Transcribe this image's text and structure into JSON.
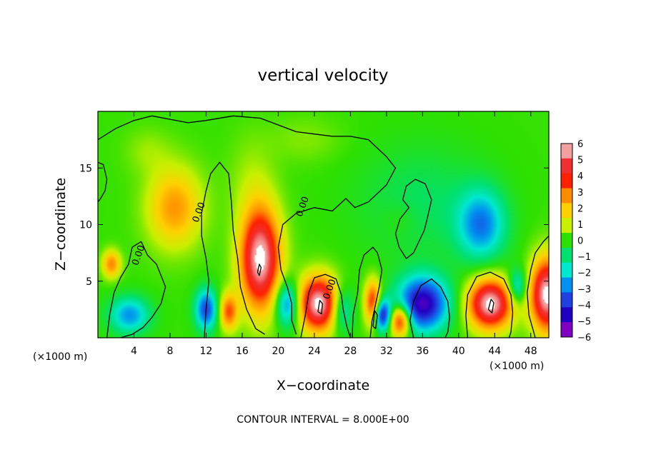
{
  "chart_data": {
    "type": "heatmap",
    "title": "vertical velocity",
    "xlabel": "X−coordinate",
    "ylabel": "Z−coordinate",
    "x_unit_left": "(×1000 m)",
    "x_unit_right": "(×1000 m)",
    "xlim": [
      0,
      50
    ],
    "ylim": [
      0,
      20
    ],
    "x_ticks": [
      4,
      8,
      12,
      16,
      20,
      24,
      28,
      32,
      36,
      40,
      44,
      48
    ],
    "x_tick_labels": [
      "4",
      "8",
      "12",
      "16",
      "20",
      "24",
      "28",
      "32",
      "36",
      "40",
      "44",
      "48"
    ],
    "y_ticks": [
      5,
      10,
      15
    ],
    "y_tick_labels": [
      "5",
      "10",
      "15"
    ],
    "contour_labels": [
      {
        "text": "0.00",
        "x": 11.5,
        "y": 11.0
      },
      {
        "text": "0.00",
        "x": 4.8,
        "y": 7.2
      },
      {
        "text": "0.00",
        "x": 23.0,
        "y": 11.5
      },
      {
        "text": "0.00",
        "x": 26.0,
        "y": 4.2
      }
    ],
    "colorbar": {
      "levels": [
        6,
        5,
        4,
        3,
        2,
        1,
        0,
        -1,
        -2,
        -3,
        -4,
        -5,
        -6
      ],
      "labels": [
        "6",
        "5",
        "4",
        "3",
        "2",
        "1",
        "0",
        "−1",
        "−2",
        "−3",
        "−4",
        "−5",
        "−6"
      ],
      "colors": [
        "#f4a0a0",
        "#f03030",
        "#ff2000",
        "#ff8c00",
        "#ffd000",
        "#c8f000",
        "#2ee000",
        "#00e070",
        "#00e8d0",
        "#0090f0",
        "#2040e0",
        "#2000c0",
        "#8000c0"
      ]
    },
    "features": [
      {
        "kind": "max",
        "x": 8.5,
        "y": 11.5,
        "r": [
          3.0,
          3.5
        ],
        "value": 2.8
      },
      {
        "kind": "max",
        "x": 18.0,
        "y": 7.0,
        "r": [
          2.2,
          4.5
        ],
        "value": 6.5
      },
      {
        "kind": "max",
        "x": 24.5,
        "y": 3.0,
        "r": [
          2.2,
          2.4
        ],
        "value": 6.5
      },
      {
        "kind": "max",
        "x": 43.5,
        "y": 3.0,
        "r": [
          2.4,
          2.2
        ],
        "value": 6.5
      },
      {
        "kind": "max",
        "x": 49.8,
        "y": 3.8,
        "r": [
          1.8,
          3.2
        ],
        "value": 6.5
      },
      {
        "kind": "max",
        "x": 14.5,
        "y": 2.3,
        "r": [
          1.0,
          1.6
        ],
        "value": 3.5
      },
      {
        "kind": "max",
        "x": 33.5,
        "y": 1.5,
        "r": [
          1.2,
          1.4
        ],
        "value": 5.0
      },
      {
        "kind": "max",
        "x": 1.5,
        "y": 6.5,
        "r": [
          1.0,
          1.2
        ],
        "value": 3.0
      },
      {
        "kind": "max",
        "x": 30.5,
        "y": 3.0,
        "r": [
          0.9,
          2.0
        ],
        "value": 4.5
      },
      {
        "kind": "min",
        "x": 3.5,
        "y": 2.0,
        "r": [
          2.2,
          1.6
        ],
        "value": -3.0
      },
      {
        "kind": "min",
        "x": 12.0,
        "y": 2.5,
        "r": [
          1.2,
          1.8
        ],
        "value": -4.0
      },
      {
        "kind": "min",
        "x": 21.0,
        "y": 3.0,
        "r": [
          1.3,
          2.0
        ],
        "value": -3.5
      },
      {
        "kind": "min",
        "x": 36.0,
        "y": 3.0,
        "r": [
          2.8,
          2.4
        ],
        "value": -5.5
      },
      {
        "kind": "min",
        "x": 31.5,
        "y": 2.0,
        "r": [
          1.0,
          1.4
        ],
        "value": -5.0
      },
      {
        "kind": "min",
        "x": 42.5,
        "y": 10.0,
        "r": [
          2.6,
          3.0
        ],
        "value": -3.2
      },
      {
        "kind": "min",
        "x": 46.5,
        "y": 4.5,
        "r": [
          1.0,
          1.5
        ],
        "value": -2.5
      },
      {
        "kind": "min",
        "x": 27.0,
        "y": 2.5,
        "r": [
          1.3,
          2.0
        ],
        "value": -2.5
      },
      {
        "kind": "max",
        "x": 5.5,
        "y": 16.5,
        "r": [
          2.5,
          2.0
        ],
        "value": 0.6
      },
      {
        "kind": "max",
        "x": 17.0,
        "y": 14.0,
        "r": [
          2.5,
          4.0
        ],
        "value": 0.6
      },
      {
        "kind": "max",
        "x": 23.0,
        "y": 17.5,
        "r": [
          4.0,
          2.0
        ],
        "value": 0.5
      },
      {
        "kind": "min",
        "x": 36.0,
        "y": 12.0,
        "r": [
          7.0,
          5.0
        ],
        "value": -0.9
      },
      {
        "kind": "max",
        "x": 33.5,
        "y": 10.5,
        "r": [
          2.0,
          1.5
        ],
        "value": 0.4
      }
    ],
    "contours_level_0": [
      [
        [
          0,
          17.5
        ],
        [
          2,
          18.5
        ],
        [
          4,
          19.2
        ],
        [
          6,
          19.6
        ],
        [
          8,
          19.3
        ],
        [
          10,
          19.0
        ],
        [
          12,
          19.2
        ],
        [
          15,
          19.6
        ],
        [
          18,
          19.4
        ],
        [
          20,
          18.8
        ],
        [
          22,
          18.2
        ],
        [
          24,
          18.0
        ],
        [
          26,
          17.8
        ],
        [
          28,
          17.8
        ],
        [
          30,
          17.5
        ],
        [
          32,
          16.0
        ],
        [
          33,
          15.0
        ],
        [
          32,
          13.5
        ],
        [
          30,
          12.0
        ],
        [
          28.5,
          11.5
        ],
        [
          27.5,
          12.3
        ],
        [
          26,
          11.2
        ],
        [
          24,
          11.5
        ],
        [
          22,
          11.0
        ],
        [
          20.5,
          10.0
        ],
        [
          20,
          8.0
        ],
        [
          20.3,
          6.0
        ],
        [
          21.0,
          4.5
        ],
        [
          21.5,
          3.0
        ],
        [
          21.5,
          1.5
        ],
        [
          22,
          0.3
        ]
      ],
      [
        [
          11.8,
          0
        ],
        [
          12,
          2.5
        ],
        [
          12.3,
          5
        ],
        [
          12.0,
          7
        ],
        [
          11.5,
          9
        ],
        [
          11.5,
          11
        ],
        [
          12.0,
          13
        ],
        [
          12.5,
          14.5
        ],
        [
          13.5,
          15.5
        ],
        [
          14.5,
          14.5
        ],
        [
          14.8,
          12
        ],
        [
          15,
          9.5
        ],
        [
          15.5,
          7
        ],
        [
          15.8,
          4.5
        ],
        [
          16.5,
          2.5
        ],
        [
          17.5,
          0.8
        ],
        [
          18.5,
          0.3
        ]
      ],
      [
        [
          1.0,
          0
        ],
        [
          1.3,
          2
        ],
        [
          1.8,
          4
        ],
        [
          2.5,
          5.3
        ],
        [
          3.4,
          6.5
        ],
        [
          3.8,
          8
        ],
        [
          4.8,
          8.5
        ],
        [
          5.5,
          7.3
        ],
        [
          6.5,
          6.5
        ],
        [
          7,
          5.5
        ],
        [
          7.5,
          4.5
        ],
        [
          7.0,
          3.0
        ],
        [
          6.0,
          1.8
        ],
        [
          5.0,
          0.9
        ],
        [
          3.8,
          0.3
        ],
        [
          2.5,
          0
        ]
      ],
      [
        [
          22.5,
          0
        ],
        [
          23.0,
          2
        ],
        [
          23.4,
          4
        ],
        [
          24.0,
          5.3
        ],
        [
          25.2,
          5.6
        ],
        [
          26.4,
          5.2
        ],
        [
          27.0,
          3.8
        ],
        [
          27.2,
          2.5
        ],
        [
          27.6,
          1
        ],
        [
          28,
          0
        ]
      ],
      [
        [
          28.2,
          0
        ],
        [
          28.3,
          2
        ],
        [
          28.8,
          4
        ],
        [
          29.0,
          6
        ],
        [
          29.5,
          7.3
        ],
        [
          30.5,
          8
        ],
        [
          31,
          7.5
        ],
        [
          31.5,
          6.0
        ],
        [
          31.2,
          4.5
        ],
        [
          30.8,
          3
        ],
        [
          30.4,
          1.5
        ],
        [
          30.2,
          0
        ]
      ],
      [
        [
          35,
          0
        ],
        [
          34.6,
          1.5
        ],
        [
          35.0,
          3.2
        ],
        [
          35.8,
          4.6
        ],
        [
          37.0,
          5.2
        ],
        [
          38.0,
          4.5
        ],
        [
          38.8,
          3.2
        ],
        [
          39.0,
          1.8
        ],
        [
          38.8,
          0.5
        ],
        [
          38.5,
          0
        ]
      ],
      [
        [
          41.0,
          0
        ],
        [
          40.8,
          2
        ],
        [
          41.0,
          3.8
        ],
        [
          42.0,
          5.4
        ],
        [
          43.5,
          5.8
        ],
        [
          45.0,
          5.2
        ],
        [
          45.8,
          3.8
        ],
        [
          46.0,
          2.2
        ],
        [
          45.8,
          0.5
        ],
        [
          45.6,
          0
        ]
      ],
      [
        [
          48.5,
          0
        ],
        [
          47.8,
          2
        ],
        [
          47.6,
          4
        ],
        [
          48.0,
          6
        ],
        [
          48.5,
          7.5
        ],
        [
          49.4,
          8.5
        ],
        [
          50,
          9.0
        ]
      ],
      [
        [
          34.5,
          11.5
        ],
        [
          33.8,
          12.2
        ],
        [
          34.2,
          13.4
        ],
        [
          35.2,
          14.0
        ],
        [
          36.3,
          13.6
        ],
        [
          37.0,
          12.2
        ],
        [
          36.6,
          10.8
        ],
        [
          36.2,
          9.5
        ],
        [
          35.0,
          7.5
        ],
        [
          34.2,
          7.0
        ],
        [
          33.4,
          8.0
        ],
        [
          33.0,
          9.2
        ],
        [
          33.5,
          10.5
        ],
        [
          34.5,
          11.5
        ]
      ],
      [
        [
          0,
          15.5
        ],
        [
          0.6,
          15.3
        ],
        [
          1.0,
          14.0
        ],
        [
          0.8,
          13.0
        ],
        [
          0.3,
          12.3
        ],
        [
          0,
          12.0
        ]
      ]
    ],
    "contours_level_8": [
      [
        [
          17.7,
          5.8
        ],
        [
          17.9,
          6.5
        ],
        [
          18.1,
          6.2
        ],
        [
          17.9,
          5.5
        ],
        [
          17.7,
          5.8
        ]
      ],
      [
        [
          24.4,
          2.3
        ],
        [
          24.6,
          3.3
        ],
        [
          24.9,
          3.0
        ],
        [
          24.8,
          2.1
        ],
        [
          24.4,
          2.3
        ]
      ],
      [
        [
          43.3,
          2.5
        ],
        [
          43.6,
          3.4
        ],
        [
          43.9,
          3.1
        ],
        [
          43.7,
          2.2
        ],
        [
          43.3,
          2.5
        ]
      ],
      [
        [
          30.5,
          1.0
        ],
        [
          30.7,
          2.4
        ],
        [
          31.0,
          2.0
        ],
        [
          30.8,
          0.8
        ],
        [
          30.5,
          1.0
        ]
      ]
    ],
    "footer": "CONTOUR INTERVAL = 8.000E+00"
  }
}
